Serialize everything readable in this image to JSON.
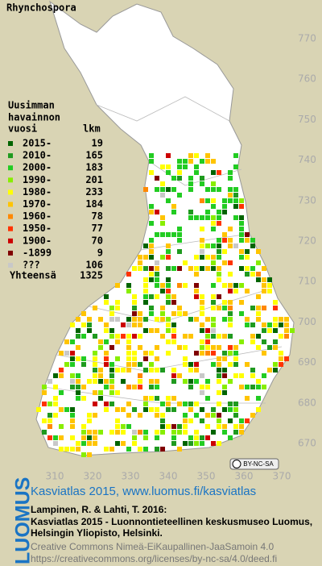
{
  "title": "Rhynchospora",
  "legend": {
    "heading": [
      "Uusimman",
      "havainnon"
    ],
    "col_year": "vuosi",
    "col_count": "lkm",
    "rows": [
      {
        "label": "2015-",
        "count": 19,
        "color": "#006400"
      },
      {
        "label": "2010-",
        "count": 165,
        "color": "#1f9a1f"
      },
      {
        "label": "2000-",
        "count": 183,
        "color": "#22cc22"
      },
      {
        "label": "1990-",
        "count": 201,
        "color": "#88ee00"
      },
      {
        "label": "1980-",
        "count": 233,
        "color": "#ffff00"
      },
      {
        "label": "1970-",
        "count": 184,
        "color": "#ffc400"
      },
      {
        "label": "1960-",
        "count": 78,
        "color": "#ff8800"
      },
      {
        "label": "1950-",
        "count": 77,
        "color": "#ff3300"
      },
      {
        "label": "1900-",
        "count": 70,
        "color": "#cc0000"
      },
      {
        "label": "-1899",
        "count": 9,
        "color": "#800000"
      },
      {
        "label": "???",
        "count": 106,
        "color": "#c8c8c8"
      }
    ],
    "total_label": "Yhteensä",
    "total": 1325
  },
  "axes": {
    "right": [
      770,
      760,
      750,
      740,
      730,
      720,
      710,
      700,
      690,
      680,
      670
    ],
    "bottom": [
      310,
      320,
      330,
      340,
      350,
      360,
      370
    ]
  },
  "badge": "BY-NC-SA",
  "footer": {
    "brand": "LUOMUS",
    "link": "Kasviatlas 2015, www.luomus.fi/kasviatlas",
    "citation": [
      "Lampinen, R. & Lahti, T. 2016:",
      "Kasviatlas 2015 - Luonnontieteellinen keskusmuseo Luomus,",
      "Helsingin Yliopisto, Helsinki."
    ],
    "license": [
      "Creative Commons Nimeä-EiKaupallinen-JaaSamoin 4.0",
      "https://creativecommons.org/licenses/by-nc-sa/4.0/deed.fi"
    ]
  }
}
